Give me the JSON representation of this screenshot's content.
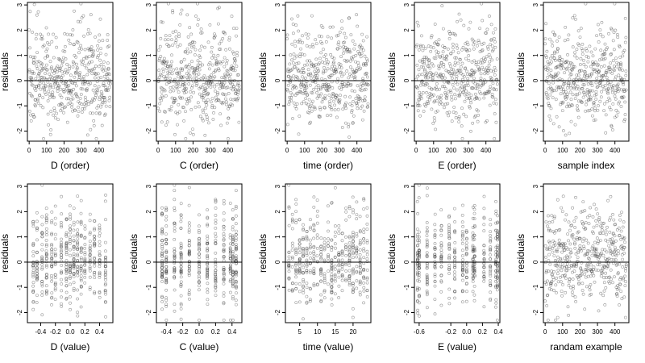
{
  "figure": {
    "layout": {
      "rows": 2,
      "cols": 5
    }
  },
  "chart_data": [
    {
      "type": "scatter",
      "panel": "D (order)",
      "xlabel": "D (order)",
      "ylabel": "residuals",
      "xlim": [
        -10,
        480
      ],
      "ylim": [
        -2.4,
        3.1
      ],
      "xticks": [
        0,
        100,
        200,
        300,
        400
      ],
      "xtick_labels": [
        "0",
        "100",
        "200",
        "300",
        "400"
      ],
      "yticks": [
        -2,
        -1,
        0,
        1,
        2,
        3
      ],
      "ytick_labels": [
        "-2",
        "-1",
        "0",
        "1",
        "2",
        "3"
      ],
      "hline": 0,
      "pattern": "uniform",
      "xrange": [
        0,
        465
      ],
      "seed": 11
    },
    {
      "type": "scatter",
      "panel": "C (order)",
      "xlabel": "C (order)",
      "ylabel": "residuals",
      "xlim": [
        -10,
        480
      ],
      "ylim": [
        -2.4,
        3.1
      ],
      "xticks": [
        0,
        100,
        200,
        300,
        400
      ],
      "xtick_labels": [
        "0",
        "100",
        "200",
        "300",
        "400"
      ],
      "yticks": [
        -2,
        -1,
        0,
        1,
        2,
        3
      ],
      "ytick_labels": [
        "-2",
        "-1",
        "0",
        "1",
        "2",
        "3"
      ],
      "hline": 0,
      "pattern": "uniform",
      "xrange": [
        0,
        465
      ],
      "seed": 23
    },
    {
      "type": "scatter",
      "panel": "time (order)",
      "xlabel": "time (order)",
      "ylabel": "residuals",
      "xlim": [
        -10,
        480
      ],
      "ylim": [
        -2.4,
        3.1
      ],
      "xticks": [
        0,
        100,
        200,
        300,
        400
      ],
      "xtick_labels": [
        "0",
        "100",
        "200",
        "300",
        "400"
      ],
      "yticks": [
        -2,
        -1,
        0,
        1,
        2,
        3
      ],
      "ytick_labels": [
        "-2",
        "-1",
        "0",
        "1",
        "2",
        "3"
      ],
      "hline": 0,
      "pattern": "uniform",
      "xrange": [
        0,
        465
      ],
      "seed": 37
    },
    {
      "type": "scatter",
      "panel": "E (order)",
      "xlabel": "E (order)",
      "ylabel": "residuals",
      "xlim": [
        -10,
        480
      ],
      "ylim": [
        -2.4,
        3.1
      ],
      "xticks": [
        0,
        100,
        200,
        300,
        400
      ],
      "xtick_labels": [
        "0",
        "100",
        "200",
        "300",
        "400"
      ],
      "yticks": [
        -2,
        -1,
        0,
        1,
        2,
        3
      ],
      "ytick_labels": [
        "-2",
        "-1",
        "0",
        "1",
        "2",
        "3"
      ],
      "hline": 0,
      "pattern": "uniform",
      "xrange": [
        0,
        465
      ],
      "seed": 41
    },
    {
      "type": "scatter",
      "panel": "sample index",
      "xlabel": "sample index",
      "ylabel": "residuals",
      "xlim": [
        -10,
        480
      ],
      "ylim": [
        -2.4,
        3.1
      ],
      "xticks": [
        0,
        100,
        200,
        300,
        400
      ],
      "xtick_labels": [
        "0",
        "100",
        "200",
        "300",
        "400"
      ],
      "yticks": [
        -2,
        -1,
        0,
        1,
        2,
        3
      ],
      "ytick_labels": [
        "-2",
        "-1",
        "0",
        "1",
        "2",
        "3"
      ],
      "hline": 0,
      "pattern": "uniform",
      "xrange": [
        0,
        465
      ],
      "seed": 53
    },
    {
      "type": "scatter",
      "panel": "D (value)",
      "xlabel": "D (value)",
      "ylabel": "residuals",
      "xlim": [
        -0.58,
        0.58
      ],
      "ylim": [
        -2.4,
        3.1
      ],
      "xticks": [
        -0.4,
        -0.2,
        0,
        0.2,
        0.4
      ],
      "xtick_labels": [
        "-0.4",
        "-0.2",
        "0.0",
        "0.2",
        "0.4"
      ],
      "yticks": [
        -2,
        -1,
        0,
        1,
        2,
        3
      ],
      "ytick_labels": [
        "-2",
        "-1",
        "0",
        "1",
        "2",
        "3"
      ],
      "hline": 0,
      "pattern": "columns",
      "columns": [
        -0.5,
        -0.45,
        -0.38,
        -0.32,
        -0.25,
        -0.2,
        -0.12,
        -0.05,
        0.0,
        0.05,
        0.1,
        0.15,
        0.2,
        0.27,
        0.33,
        0.4,
        0.48
      ],
      "seed": 61
    },
    {
      "type": "scatter",
      "panel": "C (value)",
      "xlabel": "C (value)",
      "ylabel": "residuals",
      "xlim": [
        -0.52,
        0.52
      ],
      "ylim": [
        -2.4,
        3.1
      ],
      "xticks": [
        -0.4,
        -0.2,
        0,
        0.2,
        0.4
      ],
      "xtick_labels": [
        "-0.4",
        "-0.2",
        "0.0",
        "0.2",
        "0.4"
      ],
      "yticks": [
        -2,
        -1,
        0,
        1,
        2,
        3
      ],
      "ytick_labels": [
        "-2",
        "-1",
        "0",
        "1",
        "2",
        "3"
      ],
      "hline": 0,
      "pattern": "columns",
      "columns": [
        -0.45,
        -0.4,
        -0.3,
        -0.22,
        -0.12,
        0.0,
        0.1,
        0.2,
        0.3,
        0.38,
        0.41,
        0.45
      ],
      "seed": 71
    },
    {
      "type": "scatter",
      "panel": "time (value)",
      "xlabel": "time (value)",
      "ylabel": "residuals",
      "xlim": [
        1,
        25
      ],
      "ylim": [
        -2.4,
        3.1
      ],
      "xticks": [
        5,
        10,
        15,
        20
      ],
      "xtick_labels": [
        "5",
        "10",
        "15",
        "20"
      ],
      "yticks": [
        -2,
        -1,
        0,
        1,
        2,
        3
      ],
      "ytick_labels": [
        "-2",
        "-1",
        "0",
        "1",
        "2",
        "3"
      ],
      "hline": 0,
      "pattern": "columns",
      "columns": [
        2,
        3,
        4,
        5,
        6,
        7,
        8,
        9,
        10,
        11,
        12,
        13,
        14,
        15,
        16,
        17,
        18,
        19,
        20,
        21,
        22,
        23,
        24
      ],
      "seed": 83
    },
    {
      "type": "scatter",
      "panel": "E (value)",
      "xlabel": "E (value)",
      "ylabel": "residuals",
      "xlim": [
        -0.66,
        0.42
      ],
      "ylim": [
        -2.4,
        3.1
      ],
      "xticks": [
        -0.6,
        -0.2,
        0,
        0.2,
        0.4
      ],
      "xtick_labels": [
        "-0.6",
        "-0.2",
        "0.0",
        "0.2",
        "0.4"
      ],
      "yticks": [
        -2,
        -1,
        0,
        1,
        2,
        3
      ],
      "ytick_labels": [
        "-2",
        "-1",
        "0",
        "1",
        "2",
        "3"
      ],
      "hline": 0,
      "pattern": "columns",
      "columns": [
        -0.62,
        -0.6,
        -0.5,
        -0.4,
        -0.32,
        -0.22,
        -0.15,
        -0.05,
        0.0,
        0.08,
        0.1,
        0.22,
        0.3,
        0.37,
        0.39
      ],
      "seed": 97
    },
    {
      "type": "scatter",
      "panel": "randam example",
      "xlabel": "randam example",
      "ylabel": "residuals",
      "xlim": [
        -10,
        480
      ],
      "ylim": [
        -2.4,
        3.1
      ],
      "xticks": [
        0,
        100,
        200,
        300,
        400
      ],
      "xtick_labels": [
        "0",
        "100",
        "200",
        "300",
        "400"
      ],
      "yticks": [
        -2,
        -1,
        0,
        1,
        2,
        3
      ],
      "ytick_labels": [
        "-2",
        "-1",
        "0",
        "1",
        "2",
        "3"
      ],
      "hline": 0,
      "pattern": "uniform",
      "xrange": [
        0,
        465
      ],
      "seed": 109
    }
  ]
}
